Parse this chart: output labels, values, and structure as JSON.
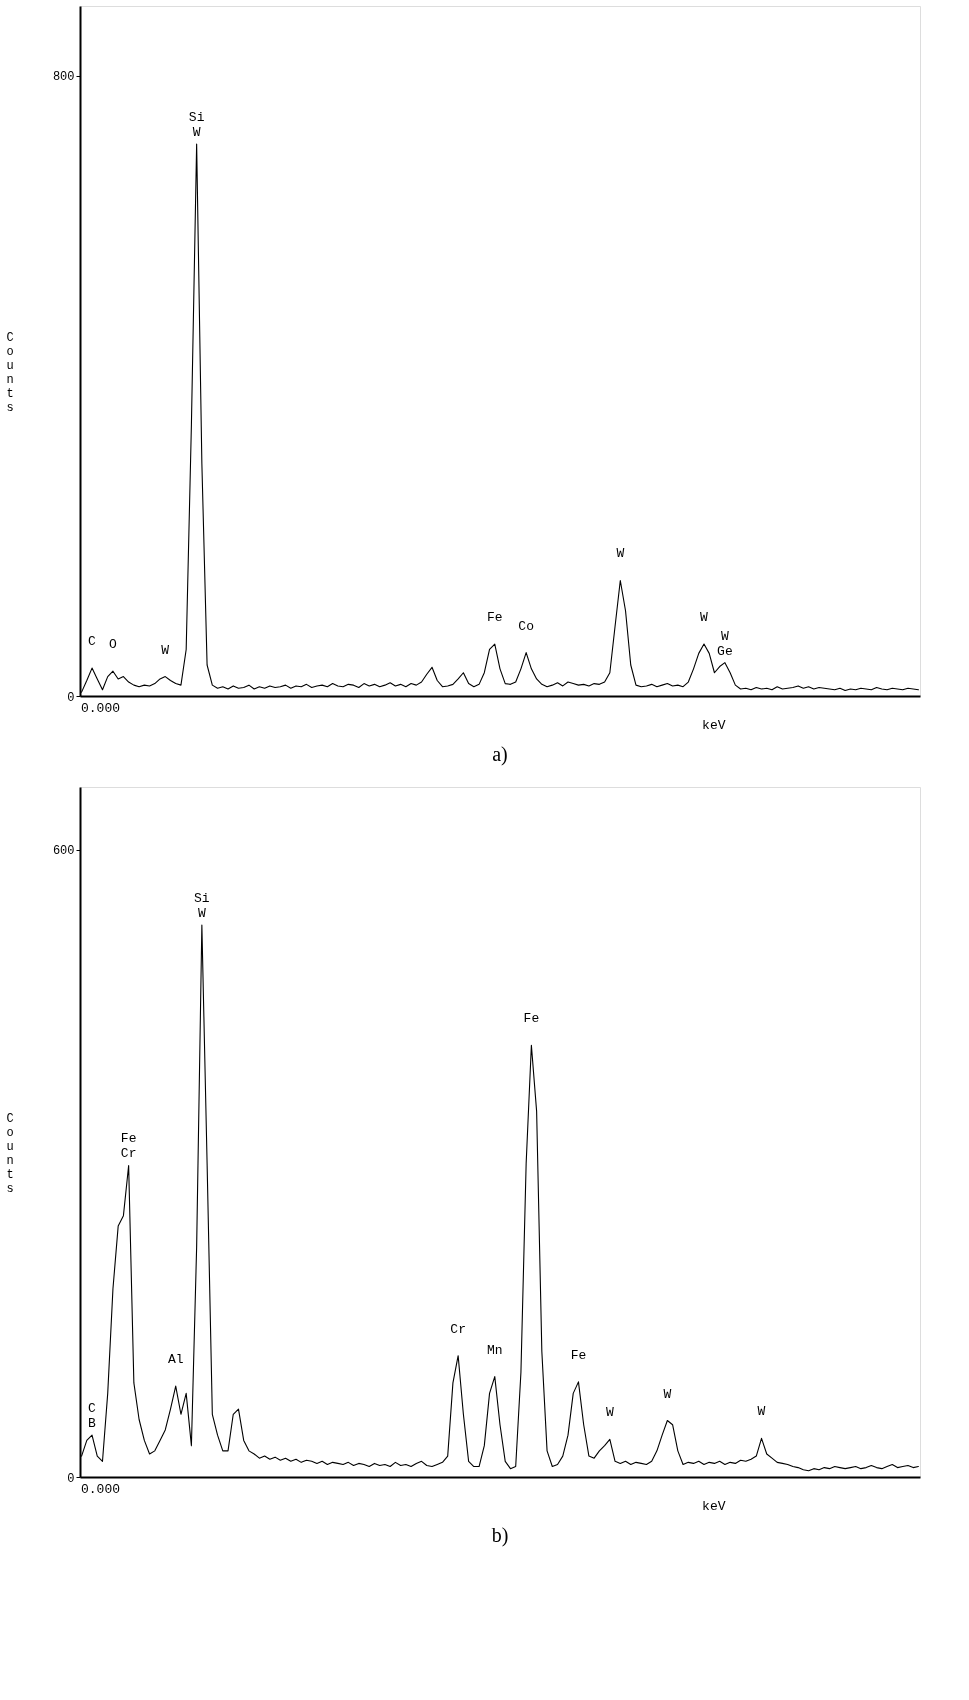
{
  "chart_data": [
    {
      "type": "line",
      "title": "a)",
      "xlabel": "keV",
      "ylabel": "Counts",
      "ylim": [
        0,
        890
      ],
      "yticks": [
        0,
        800
      ],
      "annotations": [
        "0.000"
      ],
      "categories": [
        null,
        null,
        null,
        null,
        null,
        null,
        null,
        null,
        null,
        null,
        null,
        null,
        null,
        null,
        null,
        null,
        null,
        null,
        null,
        null,
        null,
        null,
        null,
        null,
        null,
        null,
        null,
        null,
        null,
        null,
        null,
        null,
        null,
        null,
        null,
        null,
        null,
        null,
        null,
        null,
        null,
        null,
        null,
        null,
        null,
        null,
        null,
        null,
        null,
        null,
        null,
        null,
        null,
        null,
        null,
        null,
        null,
        null,
        null,
        null,
        null,
        null,
        null,
        null,
        null,
        null,
        null,
        null,
        null,
        null,
        null,
        null,
        null,
        null,
        null,
        null,
        null,
        null,
        null,
        null,
        null,
        null,
        null,
        null,
        null,
        null,
        null,
        null,
        null,
        null,
        null,
        null,
        null,
        null,
        null,
        null,
        null,
        null,
        null,
        null,
        null,
        null,
        null,
        null,
        null,
        null,
        null,
        null,
        null,
        null,
        null,
        null,
        null,
        null,
        null,
        null,
        null,
        null,
        null,
        null,
        null,
        null,
        null,
        null,
        null,
        null,
        null,
        null,
        null,
        null,
        null,
        null,
        null,
        null,
        null,
        null,
        null,
        null,
        null,
        null,
        null,
        null,
        null,
        null,
        null,
        null,
        null,
        null,
        null,
        null,
        null,
        null,
        null,
        null,
        null,
        null,
        null,
        null,
        null,
        null,
        null
      ],
      "series": [
        {
          "color": "#000000",
          "values": [
            5,
            20,
            36,
            22,
            8,
            25,
            32,
            22,
            25,
            18,
            14,
            12,
            14,
            13,
            16,
            22,
            25,
            20,
            16,
            14,
            60,
            350,
            712,
            300,
            40,
            14,
            10,
            12,
            9,
            13,
            10,
            11,
            14,
            9,
            12,
            10,
            13,
            11,
            12,
            14,
            10,
            13,
            12,
            15,
            11,
            13,
            14,
            12,
            16,
            13,
            12,
            15,
            14,
            11,
            16,
            13,
            15,
            12,
            14,
            17,
            13,
            15,
            12,
            16,
            14,
            18,
            28,
            37,
            20,
            12,
            13,
            15,
            22,
            30,
            16,
            12,
            15,
            30,
            60,
            67,
            35,
            16,
            15,
            18,
            35,
            56,
            35,
            22,
            15,
            12,
            14,
            17,
            13,
            18,
            16,
            14,
            15,
            13,
            16,
            15,
            18,
            30,
            90,
            149,
            110,
            40,
            14,
            12,
            13,
            15,
            12,
            14,
            16,
            13,
            14,
            12,
            18,
            35,
            55,
            67,
            55,
            30,
            38,
            43,
            30,
            14,
            9,
            10,
            8,
            11,
            9,
            10,
            8,
            12,
            9,
            10,
            11,
            13,
            10,
            12,
            9,
            11,
            10,
            9,
            8,
            10,
            7,
            9,
            8,
            10,
            9,
            8,
            11,
            9,
            8,
            10,
            9,
            8,
            10,
            9,
            8
          ],
          "value_labels": [
            null,
            null,
            "C",
            null,
            null,
            null,
            "O",
            null,
            null,
            null,
            null,
            null,
            null,
            null,
            null,
            null,
            "W",
            null,
            null,
            null,
            null,
            null,
            "Si\nW",
            null,
            null,
            null,
            null,
            null,
            null,
            null,
            null,
            null,
            null,
            null,
            null,
            null,
            null,
            null,
            null,
            null,
            null,
            null,
            null,
            null,
            null,
            null,
            null,
            null,
            null,
            null,
            null,
            null,
            null,
            null,
            null,
            null,
            null,
            null,
            null,
            null,
            null,
            null,
            null,
            null,
            null,
            null,
            null,
            null,
            null,
            null,
            null,
            null,
            null,
            null,
            null,
            null,
            null,
            null,
            null,
            "Fe",
            null,
            null,
            null,
            null,
            null,
            "Co",
            null,
            null,
            null,
            null,
            null,
            null,
            null,
            null,
            null,
            null,
            null,
            null,
            null,
            null,
            null,
            null,
            null,
            "W",
            null,
            null,
            null,
            null,
            null,
            null,
            null,
            null,
            null,
            null,
            null,
            null,
            null,
            null,
            null,
            "W",
            null,
            null,
            null,
            "W\nGe",
            null,
            null,
            null,
            null,
            null,
            null,
            null,
            null,
            null,
            null,
            null,
            null,
            null,
            null,
            null,
            null,
            null,
            null,
            null,
            null,
            null,
            null,
            null,
            null,
            null,
            null,
            null,
            null,
            null,
            null,
            null,
            null,
            null,
            null,
            null,
            null,
            null
          ]
        }
      ]
    },
    {
      "type": "line",
      "title": "b)",
      "xlabel": "keV",
      "ylabel": "Counts",
      "ylim": [
        0,
        660
      ],
      "yticks": [
        0,
        600
      ],
      "annotations": [
        "0.000"
      ],
      "categories": [
        null,
        null,
        null,
        null,
        null,
        null,
        null,
        null,
        null,
        null,
        null,
        null,
        null,
        null,
        null,
        null,
        null,
        null,
        null,
        null,
        null,
        null,
        null,
        null,
        null,
        null,
        null,
        null,
        null,
        null,
        null,
        null,
        null,
        null,
        null,
        null,
        null,
        null,
        null,
        null,
        null,
        null,
        null,
        null,
        null,
        null,
        null,
        null,
        null,
        null,
        null,
        null,
        null,
        null,
        null,
        null,
        null,
        null,
        null,
        null,
        null,
        null,
        null,
        null,
        null,
        null,
        null,
        null,
        null,
        null,
        null,
        null,
        null,
        null,
        null,
        null,
        null,
        null,
        null,
        null,
        null,
        null,
        null,
        null,
        null,
        null,
        null,
        null,
        null,
        null,
        null,
        null,
        null,
        null,
        null,
        null,
        null,
        null,
        null,
        null,
        null,
        null,
        null,
        null,
        null,
        null,
        null,
        null,
        null,
        null,
        null,
        null,
        null,
        null,
        null,
        null,
        null,
        null,
        null,
        null,
        null,
        null,
        null,
        null,
        null,
        null,
        null,
        null,
        null,
        null,
        null,
        null,
        null,
        null,
        null,
        null,
        null,
        null,
        null,
        null,
        null,
        null,
        null,
        null,
        null,
        null,
        null,
        null,
        null,
        null,
        null,
        null,
        null,
        null,
        null,
        null,
        null,
        null,
        null,
        null,
        null
      ],
      "series": [
        {
          "color": "#000000",
          "values": [
            20,
            35,
            40,
            20,
            15,
            80,
            180,
            240,
            250,
            298,
            90,
            55,
            35,
            22,
            25,
            35,
            45,
            65,
            87,
            60,
            80,
            30,
            220,
            528,
            300,
            60,
            40,
            25,
            25,
            60,
            65,
            35,
            25,
            22,
            18,
            20,
            17,
            19,
            16,
            18,
            15,
            17,
            14,
            16,
            15,
            13,
            15,
            12,
            14,
            13,
            12,
            14,
            11,
            13,
            12,
            10,
            13,
            11,
            12,
            10,
            14,
            11,
            12,
            10,
            13,
            15,
            11,
            10,
            12,
            14,
            20,
            90,
            116,
            60,
            15,
            10,
            10,
            30,
            80,
            96,
            50,
            15,
            8,
            10,
            100,
            300,
            413,
            350,
            120,
            25,
            10,
            12,
            20,
            40,
            80,
            91,
            50,
            20,
            18,
            25,
            30,
            36,
            15,
            13,
            15,
            12,
            14,
            13,
            12,
            15,
            25,
            40,
            54,
            50,
            25,
            12,
            14,
            13,
            15,
            12,
            14,
            13,
            15,
            12,
            14,
            13,
            16,
            15,
            17,
            20,
            37,
            22,
            18,
            14,
            13,
            12,
            10,
            9,
            7,
            6,
            8,
            7,
            9,
            8,
            10,
            9,
            8,
            9,
            10,
            8,
            9,
            11,
            9,
            8,
            10,
            12,
            9,
            10,
            11,
            9,
            10
          ],
          "value_labels": [
            null,
            null,
            "C\nB",
            null,
            null,
            null,
            null,
            null,
            null,
            "Fe\nCr",
            null,
            null,
            null,
            null,
            null,
            null,
            null,
            null,
            "Al",
            null,
            null,
            null,
            null,
            "Si\nW",
            null,
            null,
            null,
            null,
            null,
            null,
            null,
            null,
            null,
            null,
            null,
            null,
            null,
            null,
            null,
            null,
            null,
            null,
            null,
            null,
            null,
            null,
            null,
            null,
            null,
            null,
            null,
            null,
            null,
            null,
            null,
            null,
            null,
            null,
            null,
            null,
            null,
            null,
            null,
            null,
            null,
            null,
            null,
            null,
            null,
            null,
            null,
            null,
            "Cr",
            null,
            null,
            null,
            null,
            null,
            null,
            "Mn",
            null,
            null,
            null,
            null,
            null,
            null,
            "Fe",
            null,
            null,
            null,
            null,
            null,
            null,
            null,
            null,
            "Fe",
            null,
            null,
            null,
            null,
            null,
            "W",
            null,
            null,
            null,
            null,
            null,
            null,
            null,
            null,
            null,
            null,
            "W",
            null,
            null,
            null,
            null,
            null,
            null,
            null,
            null,
            null,
            null,
            null,
            null,
            null,
            null,
            null,
            null,
            null,
            "W",
            null,
            null,
            null,
            null,
            null,
            null,
            null,
            null,
            null,
            null,
            null,
            null,
            null,
            null,
            null,
            null,
            null,
            null,
            null,
            null,
            null,
            null,
            null,
            null,
            null,
            null,
            null,
            null,
            null,
            null
          ]
        }
      ]
    }
  ]
}
